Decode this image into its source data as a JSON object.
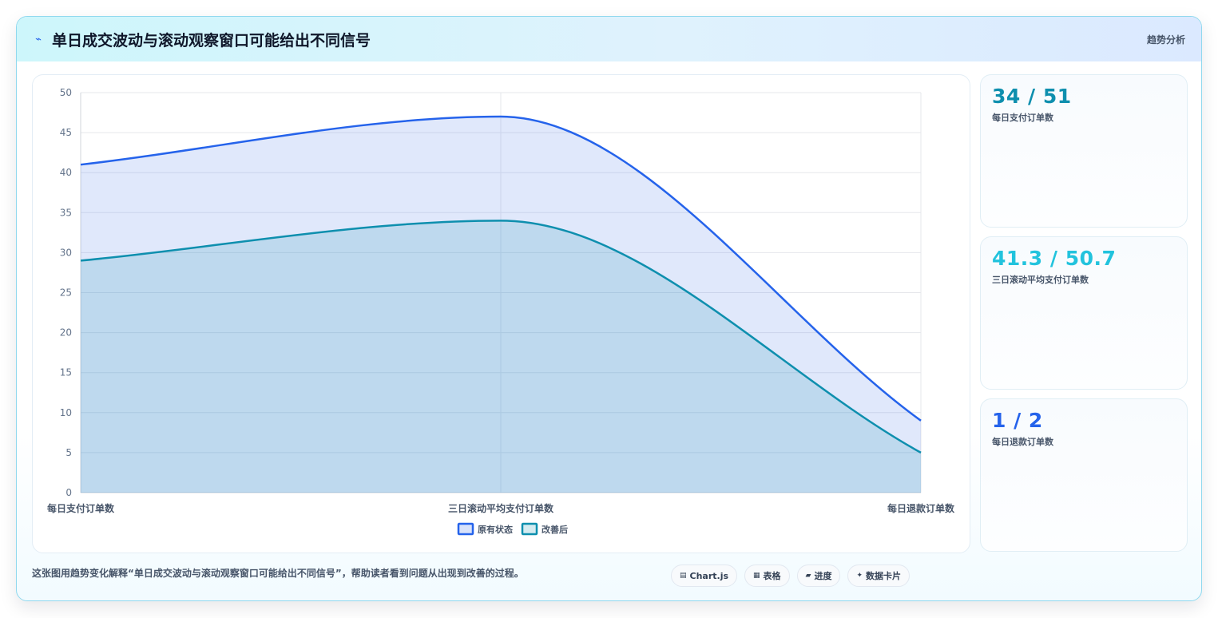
{
  "header": {
    "title": "单日成交波动与滚动观察窗口可能给出不同信号",
    "tag": "趋势分析",
    "icon": "zap-icon"
  },
  "chart_data": {
    "type": "area",
    "categories": [
      "每日支付订单数",
      "三日滚动平均支付订单数",
      "每日退款订单数"
    ],
    "series": [
      {
        "name": "原有状态",
        "values": [
          41,
          47,
          9
        ],
        "color": "#2563eb"
      },
      {
        "name": "改善后",
        "values": [
          29,
          34,
          5
        ],
        "color": "#0e8fae"
      }
    ],
    "ylim": [
      0,
      50
    ],
    "yticks": [
      0,
      5,
      10,
      15,
      20,
      25,
      30,
      35,
      40,
      45,
      50
    ],
    "grid": true,
    "legend": "bottom",
    "title": "",
    "xlabel": "",
    "ylabel": ""
  },
  "stats": [
    {
      "value": "34 / 51",
      "label": "每日支付订单数",
      "color": "#0e8fae"
    },
    {
      "value": "41.3 / 50.7",
      "label": "三日滚动平均支付订单数",
      "color": "#22c3dd"
    },
    {
      "value": "1 / 2",
      "label": "每日退款订单数",
      "color": "#2563eb"
    }
  ],
  "footer": {
    "note": "这张图用趋势变化解释“单日成交波动与滚动观察窗口可能给出不同信号”，帮助读者看到问题从出现到改善的过程。",
    "chips": [
      {
        "icon": "chart-icon",
        "glyph": "▤",
        "label": "Chart.js"
      },
      {
        "icon": "table-icon",
        "glyph": "▦",
        "label": "表格"
      },
      {
        "icon": "progress-icon",
        "glyph": "▰",
        "label": "进度"
      },
      {
        "icon": "sparkle-icon",
        "glyph": "✦",
        "label": "数据卡片"
      }
    ]
  }
}
